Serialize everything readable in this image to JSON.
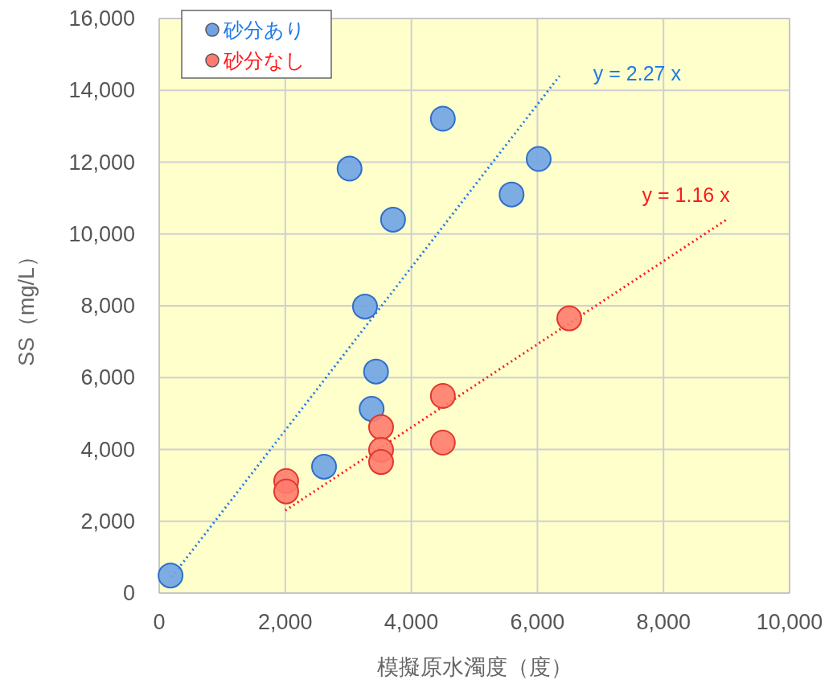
{
  "chart_data": {
    "type": "scatter",
    "xlabel": "模擬原水濁度（度）",
    "ylabel": "SS（mg/L）",
    "xlim": [
      0,
      10000
    ],
    "ylim": [
      0,
      16000
    ],
    "xticks": [
      0,
      {
        "value": 2000,
        "label": "2,000"
      },
      {
        "value": 4000,
        "label": "4,000"
      },
      {
        "value": 6000,
        "label": "6,000"
      },
      {
        "value": 8000,
        "label": "8,000"
      },
      {
        "value": 10000,
        "label": "10,000"
      }
    ],
    "yticks": [
      0,
      {
        "value": 2000,
        "label": "2,000"
      },
      {
        "value": 4000,
        "label": "4,000"
      },
      {
        "value": 6000,
        "label": "6,000"
      },
      {
        "value": 8000,
        "label": "8,000"
      },
      {
        "value": 10000,
        "label": "10,000"
      },
      {
        "value": 12000,
        "label": "12,000"
      },
      {
        "value": 14000,
        "label": "14,000"
      },
      {
        "value": 16000,
        "label": "16,000"
      }
    ],
    "grid": true,
    "legend": "top left",
    "series": [
      {
        "name": "砂分あり",
        "color": "#6fa3e6",
        "marker": "circle",
        "x": [
          180,
          2615,
          3370,
          3440,
          3265,
          3020,
          3710,
          4500,
          5590,
          6020
        ],
        "values": [
          490,
          3520,
          5130,
          6170,
          7980,
          11820,
          10400,
          13210,
          11100,
          12090
        ]
      },
      {
        "name": "砂分なし",
        "color": "#ff7b6e",
        "marker": "circle",
        "x": [
          2015,
          2015,
          3520,
          3520,
          3520,
          4500,
          4500,
          6505
        ],
        "values": [
          3120,
          2830,
          4620,
          3990,
          3650,
          5490,
          4190,
          7650
        ]
      },
      {
        "type": "line",
        "line_style": "dotted",
        "color": "#1f7ae6",
        "x": [
          200,
          6350
        ],
        "values": [
          450,
          14400
        ]
      },
      {
        "type": "line",
        "line_style": "dotted",
        "color": "#ff1a1a",
        "x": [
          2000,
          9000
        ],
        "values": [
          2300,
          10400
        ]
      }
    ],
    "annotations": [
      "y = 2.27 x",
      "y = 1.16 x"
    ]
  }
}
